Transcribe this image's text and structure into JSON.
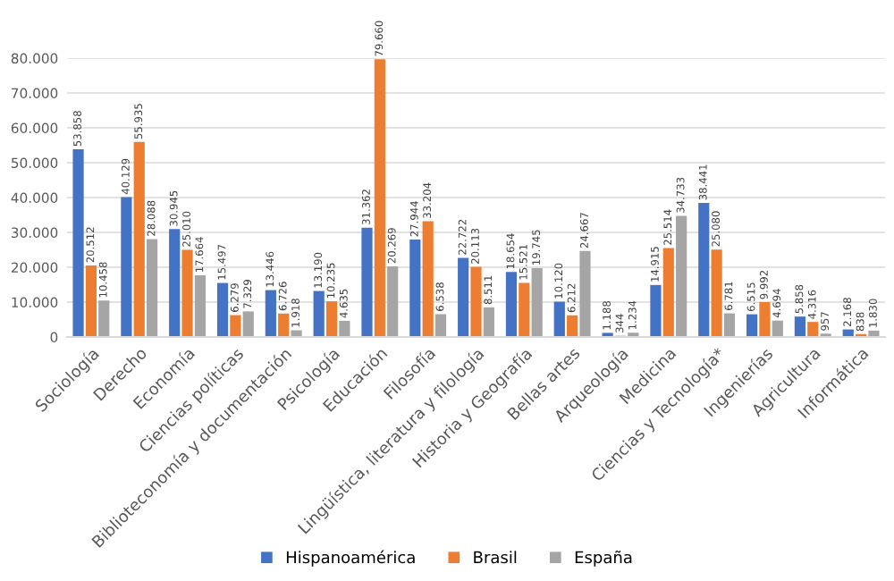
{
  "chart_data": {
    "type": "bar",
    "categories": [
      "Sociología",
      "Derecho",
      "Economía",
      "Ciencias políticas",
      "Biblioteconomía y documentación",
      "Psicología",
      "Educación",
      "Filosofía",
      "Lingüística, literatura y filología",
      "Historia y Geografía",
      "Bellas artes",
      "Arqueología",
      "Medicina",
      "Ciencias y Tecnología*",
      "Ingenierías",
      "Agricultura",
      "Informática"
    ],
    "series": [
      {
        "name": "Hispanoamérica",
        "color": "#4472c4",
        "values": [
          53858,
          40129,
          30945,
          15497,
          13446,
          13190,
          31362,
          27944,
          22722,
          18654,
          10120,
          1188,
          14915,
          38441,
          6515,
          5858,
          2168
        ],
        "value_labels": [
          "53.858",
          "40.129",
          "30.945",
          "15.497",
          "13.446",
          "13.190",
          "31.362",
          "27.944",
          "22.722",
          "18.654",
          "10.120",
          "1.188",
          "14.915",
          "38.441",
          "6.515",
          "5.858",
          "2.168"
        ]
      },
      {
        "name": "Brasil",
        "color": "#ed7d31",
        "values": [
          20512,
          55935,
          25010,
          6279,
          6726,
          10235,
          79660,
          33204,
          20113,
          15521,
          6212,
          344,
          25514,
          25080,
          9992,
          4316,
          838
        ],
        "value_labels": [
          "20.512",
          "55.935",
          "25.010",
          "6.279",
          "6.726",
          "10.235",
          "79.660",
          "33.204",
          "20.113",
          "15.521",
          "6.212",
          "344",
          "25.514",
          "25.080",
          "9.992",
          "4.316",
          "838"
        ]
      },
      {
        "name": "España",
        "color": "#a5a5a5",
        "values": [
          10458,
          28088,
          17664,
          7329,
          1918,
          4635,
          20269,
          6538,
          8511,
          19745,
          24667,
          1234,
          34733,
          6781,
          4694,
          957,
          1830
        ],
        "value_labels": [
          "10.458",
          "28.088",
          "17.664",
          "7.329",
          "1.918",
          "4.635",
          "20.269",
          "6.538",
          "8.511",
          "19.745",
          "24.667",
          "1.234",
          "34.733",
          "6.781",
          "4.694",
          "957",
          "1.830"
        ]
      }
    ],
    "ylim": [
      0,
      80000
    ],
    "yticks": [
      {
        "value": 0,
        "label": "0"
      },
      {
        "value": 10000,
        "label": "10.000"
      },
      {
        "value": 20000,
        "label": "20.000"
      },
      {
        "value": 30000,
        "label": "30.000"
      },
      {
        "value": 40000,
        "label": "40.000"
      },
      {
        "value": 50000,
        "label": "50.000"
      },
      {
        "value": 60000,
        "label": "60.000"
      },
      {
        "value": 70000,
        "label": "70.000"
      },
      {
        "value": 80000,
        "label": "80.000"
      }
    ],
    "grid": "y",
    "legend": "bottom"
  }
}
